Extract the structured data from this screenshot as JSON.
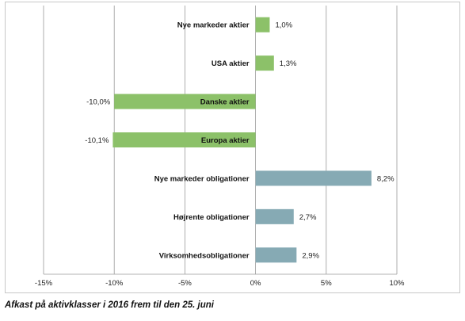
{
  "caption": "Afkast på aktivklasser i 2016 frem til den 25. juni",
  "colors": {
    "positive_equity": "#8cc169",
    "negative_equity": "#8cc169",
    "bond": "#86aab4",
    "grid": "#9a9a9a"
  },
  "chart_data": {
    "type": "bar",
    "orientation": "horizontal",
    "categories": [
      "Nye markeder aktier",
      "USA aktier",
      "Danske aktier",
      "Europa aktier",
      "Nye markeder obligationer",
      "Højrente obligationer",
      "Virksomhedsobligationer"
    ],
    "values": [
      1.0,
      1.3,
      -10.0,
      -10.1,
      8.2,
      2.7,
      2.9
    ],
    "data_labels": [
      "1,0%",
      "1,3%",
      "-10,0%",
      "-10,1%",
      "8,2%",
      "2,7%",
      "2,9%"
    ],
    "bar_colors": [
      "#8cc169",
      "#8cc169",
      "#8cc169",
      "#8cc169",
      "#86aab4",
      "#86aab4",
      "#86aab4"
    ],
    "xlim": [
      -15,
      10
    ],
    "xticks": [
      -15,
      -10,
      -5,
      0,
      5,
      10
    ],
    "xtick_labels": [
      "-15%",
      "-10%",
      "-5%",
      "0%",
      "5%",
      "10%"
    ],
    "grid": "vertical",
    "title": "",
    "xlabel": "",
    "ylabel": ""
  }
}
